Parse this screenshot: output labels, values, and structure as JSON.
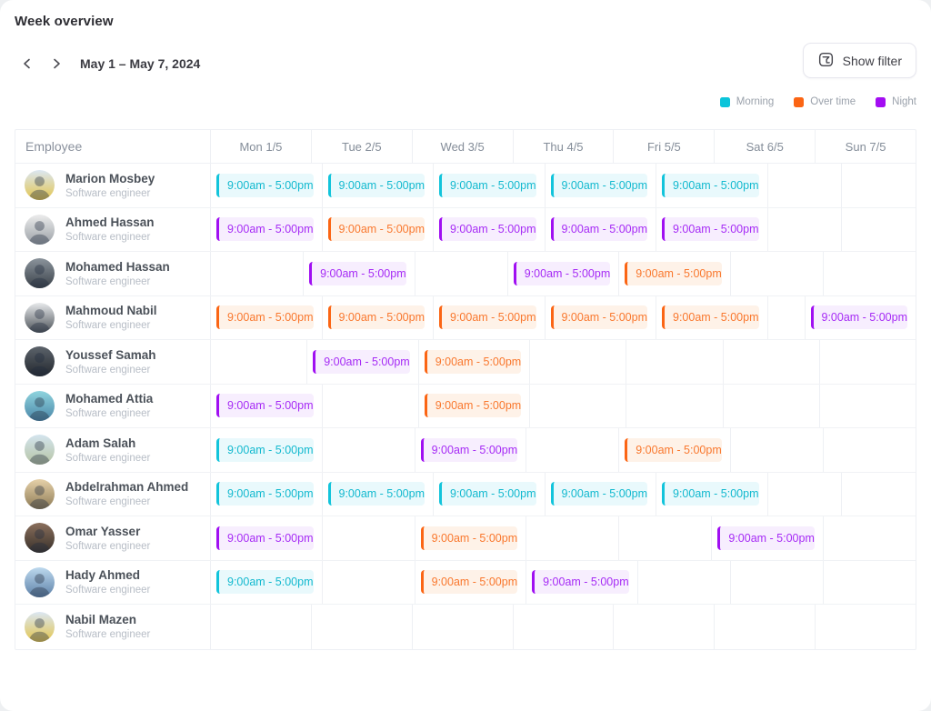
{
  "header": {
    "title": "Week overview",
    "date_range": "May 1 – May 7, 2024",
    "show_filter_label": "Show filter"
  },
  "legend": [
    {
      "type": "morning",
      "label": "Morning",
      "color": "#0BC4DA"
    },
    {
      "type": "overtime",
      "label": "Over time",
      "color": "#FB6514"
    },
    {
      "type": "night",
      "label": "Night",
      "color": "#A30DF2"
    }
  ],
  "shift_time": "9:00am - 5:00pm",
  "shift_styles": {
    "morning": {
      "bar": "#12C4DB",
      "bg": "#E9F9FC",
      "text": "#12B9CF"
    },
    "overtime": {
      "bar": "#FB6514",
      "bg": "#FEF2E8",
      "text": "#F9782E"
    },
    "night": {
      "bar": "#A00FF2",
      "bg": "#F7EEFE",
      "text": "#A62BF5"
    }
  },
  "table": {
    "columns": [
      "Employee",
      "Mon 1/5",
      "Tue 2/5",
      "Wed 3/5",
      "Thu 4/5",
      "Fri 5/5",
      "Sat 6/5",
      "Sun 7/5"
    ]
  },
  "employees": [
    {
      "name": "Marion Mosbey",
      "role": "Software engineer",
      "avatar": [
        "#dbe7f3",
        "#e3c54e"
      ],
      "shifts": [
        "morning",
        "morning",
        "morning",
        "morning",
        "morning",
        null,
        null
      ]
    },
    {
      "name": "Ahmed Hassan",
      "role": "Software engineer",
      "avatar": [
        "#ececec",
        "#9aa0a6"
      ],
      "shifts": [
        "night",
        "overtime",
        "night",
        "night",
        "night",
        null,
        null
      ]
    },
    {
      "name": "Mohamed Hassan",
      "role": "Software engineer",
      "avatar": [
        "#8b949c",
        "#3a4149"
      ],
      "shifts": [
        null,
        "night",
        null,
        "night",
        "overtime",
        null,
        null
      ]
    },
    {
      "name": "Mahmoud Nabil",
      "role": "Software engineer",
      "avatar": [
        "#e8eaec",
        "#4c5258"
      ],
      "shifts": [
        "overtime",
        "overtime",
        "overtime",
        "overtime",
        "overtime",
        null,
        "night"
      ]
    },
    {
      "name": "Youssef Samah",
      "role": "Software engineer",
      "avatar": [
        "#5c636b",
        "#23282e"
      ],
      "shifts": [
        null,
        "night",
        "overtime",
        null,
        null,
        null,
        null
      ]
    },
    {
      "name": "Mohamed Attia",
      "role": "Software engineer",
      "avatar": [
        "#8fd4de",
        "#4a86a8"
      ],
      "shifts": [
        "night",
        null,
        "overtime",
        null,
        null,
        null,
        null
      ]
    },
    {
      "name": "Adam Salah",
      "role": "Software engineer",
      "avatar": [
        "#d4e5ee",
        "#b6c4a4"
      ],
      "shifts": [
        "morning",
        null,
        "night",
        null,
        "overtime",
        null,
        null
      ]
    },
    {
      "name": "Abdelrahman Ahmed",
      "role": "Software engineer",
      "avatar": [
        "#e6d1a9",
        "#8d7b56"
      ],
      "shifts": [
        "morning",
        "morning",
        "morning",
        "morning",
        "morning",
        null,
        null
      ]
    },
    {
      "name": "Omar Yasser",
      "role": "Software engineer",
      "avatar": [
        "#8a6f5c",
        "#37302a"
      ],
      "shifts": [
        "night",
        null,
        "overtime",
        null,
        null,
        "night",
        null
      ]
    },
    {
      "name": "Hady Ahmed",
      "role": "Software engineer",
      "avatar": [
        "#bdd9ee",
        "#5d81a8"
      ],
      "shifts": [
        "morning",
        null,
        "overtime",
        "night",
        null,
        null,
        null
      ]
    },
    {
      "name": "Nabil Mazen",
      "role": "Software engineer",
      "avatar": [
        "#dbe7f3",
        "#e3c54e"
      ],
      "shifts": [
        null,
        null,
        null,
        null,
        null,
        null,
        null
      ]
    }
  ]
}
